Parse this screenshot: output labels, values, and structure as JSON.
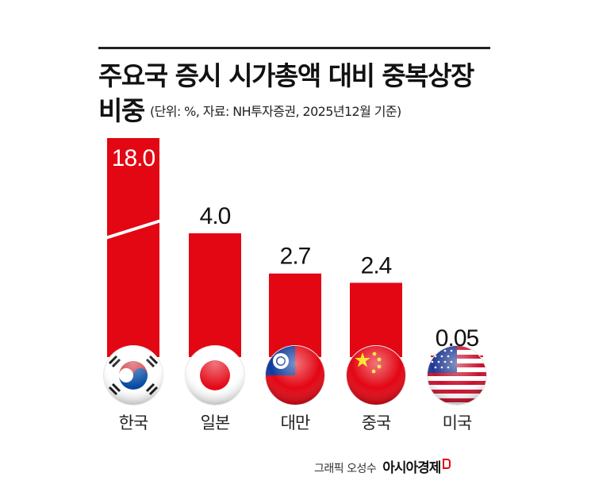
{
  "title_line1": "주요국 증시 시가총액 대비 중복상장",
  "title_line2": "비중",
  "subtitle": "(단위: %, 자료: NH투자증권, 2025년12월 기준)",
  "credit": {
    "text": "그래픽 오성수",
    "brand": "아시아경제"
  },
  "colors": {
    "bar": "#e30613",
    "text": "#111111",
    "brand_accent": "#e30613"
  },
  "chart_data": {
    "type": "bar",
    "title": "주요국 증시 시가총액 대비 중복상장 비중",
    "unit": "%",
    "source": "NH투자증권",
    "categories": [
      "한국",
      "일본",
      "대만",
      "중국",
      "미국"
    ],
    "values": [
      18.0,
      4.0,
      2.7,
      2.4,
      0.05
    ],
    "value_labels": [
      "18.0",
      "4.0",
      "2.7",
      "2.4",
      "0.05"
    ],
    "flags": [
      "south-korea-flag",
      "japan-flag",
      "taiwan-flag",
      "china-flag",
      "usa-flag"
    ],
    "axis_break_on": "한국",
    "grid": false,
    "legend": "none"
  }
}
